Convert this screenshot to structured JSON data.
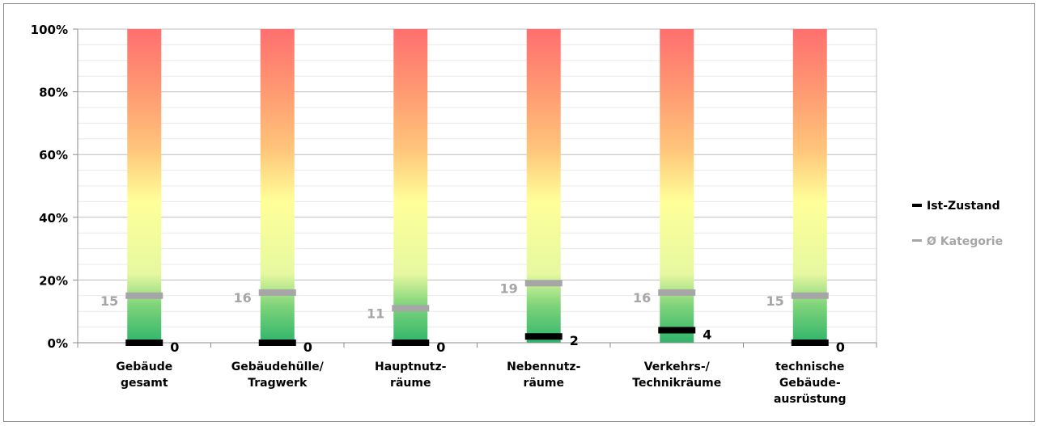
{
  "chart_data": {
    "type": "bar",
    "title": "",
    "xlabel": "",
    "ylabel": "",
    "ylim": [
      0,
      100
    ],
    "y_ticks": [
      "0%",
      "20%",
      "40%",
      "60%",
      "80%",
      "100%"
    ],
    "y_tick_values": [
      0,
      20,
      40,
      60,
      80,
      100
    ],
    "grid": true,
    "legend_position": "right",
    "categories": [
      [
        "Gebäude",
        "gesamt"
      ],
      [
        "Gebäudehülle/",
        "Tragwerk"
      ],
      [
        "Hauptnutz-",
        "räume"
      ],
      [
        "Nebennutz-",
        "räume"
      ],
      [
        "Verkehrs-/",
        "Technikräume"
      ],
      [
        "technische",
        "Gebäude-",
        "ausrüstung"
      ]
    ],
    "series": [
      {
        "name": "Ist-Zustand",
        "values": [
          0,
          0,
          0,
          2,
          4,
          0
        ],
        "color": "#000000"
      },
      {
        "name": "Ø Kategorie",
        "values": [
          15,
          16,
          11,
          19,
          16,
          15
        ],
        "color": "#a6a6a6"
      }
    ],
    "background_gradient": [
      "#2fb56b",
      "#ffff99",
      "#ff6f6f"
    ]
  }
}
